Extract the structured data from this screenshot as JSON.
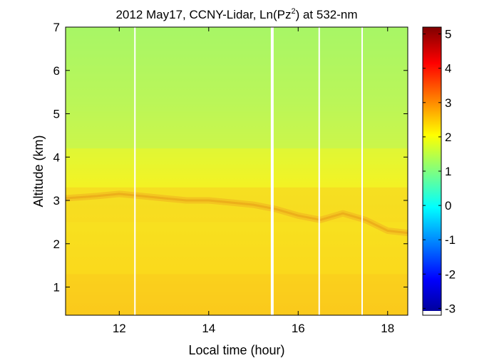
{
  "chart_data": {
    "type": "heatmap",
    "title": "2012 May17, CCNY-Lidar, Ln(Pz",
    "title_superscript": "2",
    "title_suffix": ") at 532-nm",
    "xlabel": "Local time (hour)",
    "ylabel": "Altitude (km)",
    "xlim": [
      10.8,
      18.45
    ],
    "ylim": [
      0.35,
      7
    ],
    "x_ticks": [
      12,
      14,
      16,
      18
    ],
    "y_ticks": [
      1,
      2,
      3,
      4,
      5,
      6,
      7
    ],
    "colorbar": {
      "colormap": "jet",
      "range": [
        -3.2,
        5.2
      ],
      "ticks": [
        -3,
        -2,
        -1,
        0,
        1,
        2,
        3,
        4,
        5
      ]
    },
    "data_gaps_hours": [
      12.35,
      15.42,
      16.47,
      17.43
    ],
    "layers": [
      {
        "altitude_range_km": [
          0.35,
          1.3
        ],
        "value": 2.6
      },
      {
        "altitude_range_km": [
          1.3,
          2.5
        ],
        "value": 2.4
      },
      {
        "altitude_range_km": [
          2.5,
          3.3
        ],
        "value": 2.5
      },
      {
        "altitude_range_km": [
          3.3,
          4.2
        ],
        "value": 2.0
      },
      {
        "altitude_range_km": [
          4.2,
          7.0
        ],
        "value": 1.5
      }
    ],
    "aerosol_layer_top": {
      "x": [
        10.8,
        11.5,
        12.0,
        12.5,
        13.0,
        13.5,
        14.0,
        14.5,
        15.0,
        15.5,
        16.0,
        16.5,
        17.0,
        17.5,
        18.0,
        18.45
      ],
      "y": [
        3.05,
        3.1,
        3.15,
        3.1,
        3.05,
        3.0,
        3.0,
        2.95,
        2.9,
        2.8,
        2.65,
        2.55,
        2.7,
        2.55,
        2.3,
        2.25
      ]
    }
  }
}
